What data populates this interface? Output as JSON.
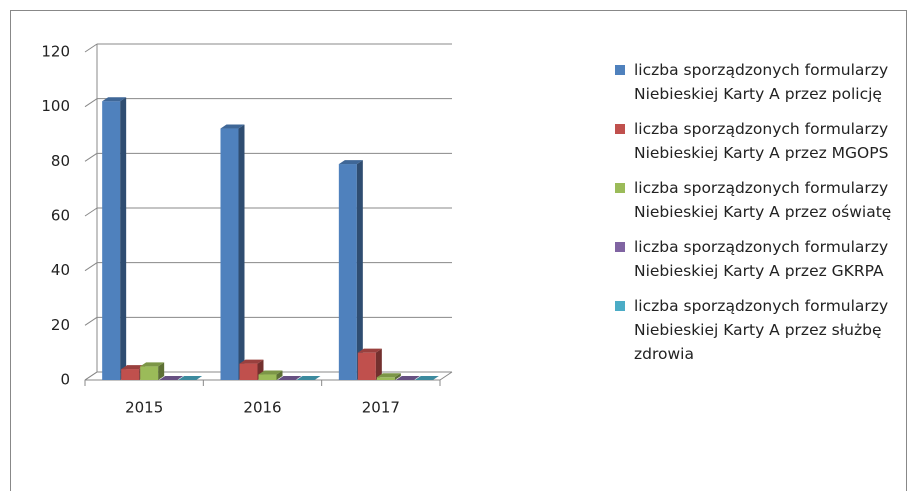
{
  "chart_data": {
    "type": "bar3d",
    "categories": [
      "2015",
      "2016",
      "2017"
    ],
    "series": [
      {
        "name": "liczba sporządzonych formularzy Niebieskiej Karty A przez policję",
        "color": "#4f81bd",
        "values": [
          102,
          92,
          79
        ]
      },
      {
        "name": "liczba sporządzonych formularzy Niebieskiej Karty A przez MGOPS",
        "color": "#c0504d",
        "values": [
          4,
          6,
          10
        ]
      },
      {
        "name": "liczba sporządzonych formularzy Niebieskiej Karty A przez oświatę",
        "color": "#9bbb59",
        "values": [
          5,
          2,
          1
        ]
      },
      {
        "name": "liczba sporządzonych formularzy Niebieskiej Karty A przez GKRPA",
        "color": "#8064a2",
        "values": [
          0,
          0,
          0
        ]
      },
      {
        "name": "liczba sporządzonych formularzy Niebieskiej Karty A przez służbę zdrowia",
        "color": "#4bacc6",
        "values": [
          0,
          0,
          0
        ]
      }
    ],
    "ylim": [
      0,
      120
    ],
    "yticks": [
      0,
      20,
      40,
      60,
      80,
      100,
      120
    ],
    "grid": true,
    "legend": "right"
  }
}
